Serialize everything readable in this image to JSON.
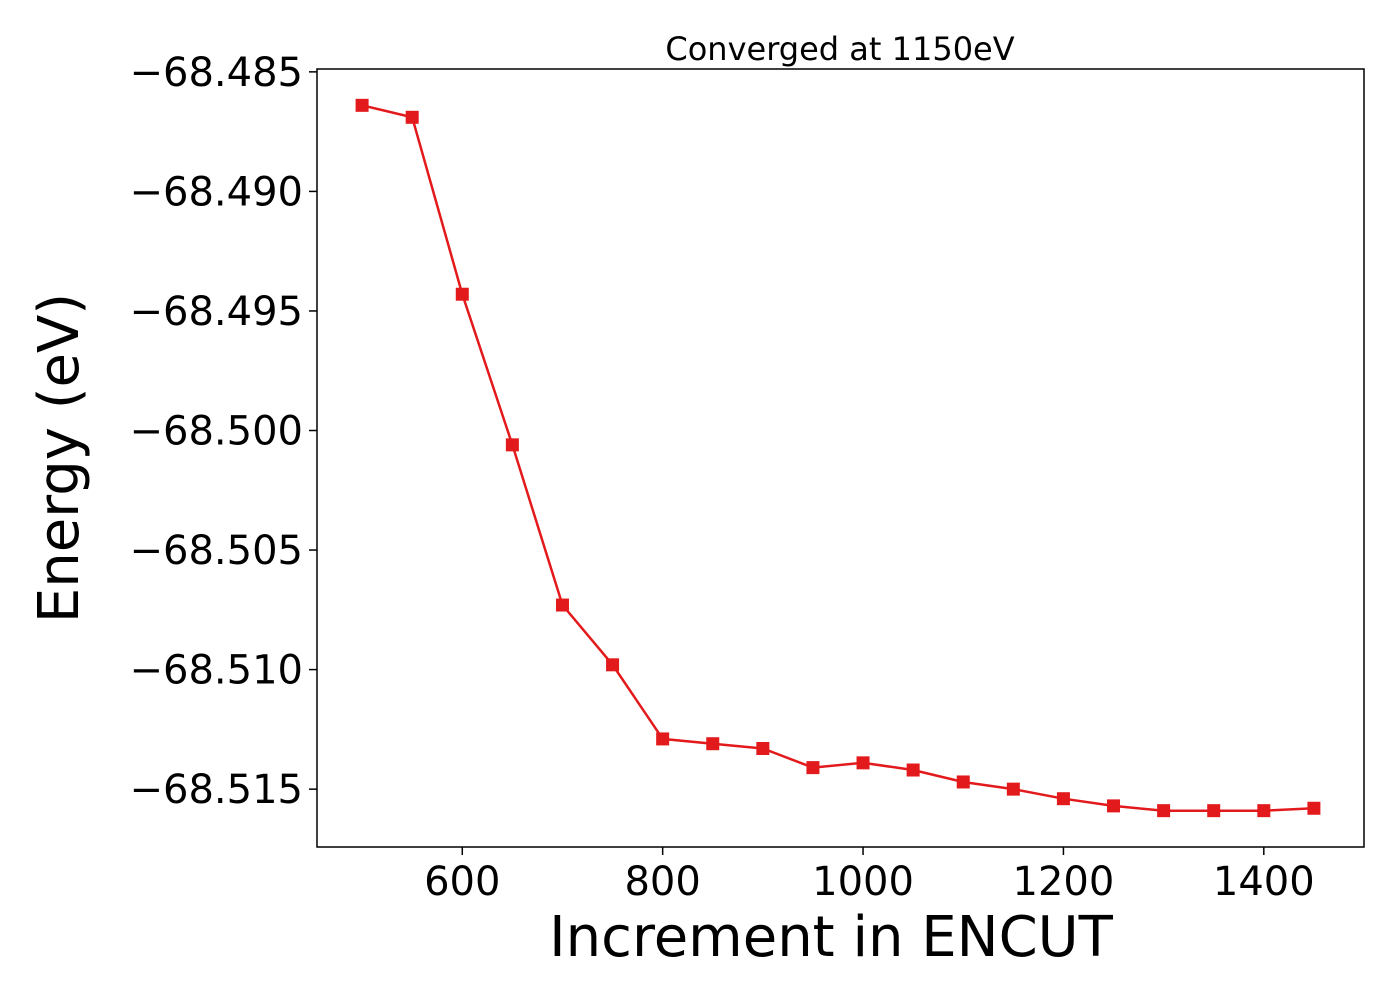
{
  "chart_data": {
    "type": "line",
    "title": "Converged at 1150eV",
    "xlabel": "Increment in ENCUT",
    "ylabel": "Energy (eV)",
    "xlim": [
      455,
      1500
    ],
    "ylim": [
      -68.51742,
      -68.48488
    ],
    "x_ticks": [
      600,
      800,
      1000,
      1200,
      1400
    ],
    "x_tick_labels": [
      "600",
      "800",
      "1000",
      "1200",
      "1400"
    ],
    "y_ticks": [
      -68.485,
      -68.49,
      -68.495,
      -68.5,
      -68.505,
      -68.51,
      -68.515
    ],
    "y_tick_labels": [
      "−68.485",
      "−68.490",
      "−68.495",
      "−68.500",
      "−68.505",
      "−68.510",
      "−68.515"
    ],
    "grid": false,
    "series": [
      {
        "color": "#e31a1c",
        "marker": "square",
        "x": [
          500,
          550,
          600,
          650,
          700,
          750,
          800,
          850,
          900,
          950,
          1000,
          1050,
          1100,
          1150,
          1200,
          1250,
          1300,
          1350,
          1400,
          1450
        ],
        "y": [
          -68.4864,
          -68.4869,
          -68.4943,
          -68.5006,
          -68.5073,
          -68.5098,
          -68.5129,
          -68.5131,
          -68.5133,
          -68.5141,
          -68.5139,
          -68.5142,
          -68.5147,
          -68.515,
          -68.5154,
          -68.5157,
          -68.5159,
          -68.5159,
          -68.5159,
          -68.5158
        ]
      }
    ]
  }
}
